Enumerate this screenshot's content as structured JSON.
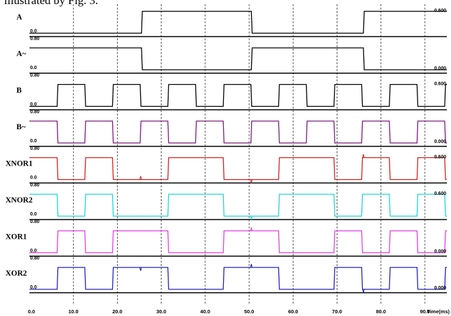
{
  "caption": "illustrated by Fig. 3.",
  "chart_data": {
    "type": "line",
    "title": "",
    "xlabel": "Time(ms)",
    "ylabel": "",
    "xlim": [
      0,
      95
    ],
    "x_ticks": [
      "0.0",
      "10.0",
      "20.0",
      "30.0",
      "40.0",
      "50.0",
      "60.0",
      "70.0",
      "80.0",
      "90.0"
    ],
    "grid": "vertical-dashed",
    "series": [
      {
        "name": "A",
        "color": "#000000",
        "low_label": "0.0",
        "high_label": "0.600",
        "top_label": "",
        "transitions": [
          25.5,
          50.5,
          76.0
        ],
        "initial": 0,
        "glitches": []
      },
      {
        "name": "A~",
        "color": "#000000",
        "low_label": "0.0",
        "high_label": "0.000",
        "top_label": "0.80",
        "transitions": [
          25.5,
          50.5,
          76.0
        ],
        "initial": 1,
        "glitches": []
      },
      {
        "name": "B",
        "color": "#000000",
        "low_label": "0.0",
        "high_label": "0.600",
        "top_label": "0.80",
        "transitions": [
          6.3,
          12.6,
          18.9,
          25.2,
          31.5,
          37.8,
          44.1,
          50.4,
          56.7,
          63.0,
          69.3,
          75.6,
          81.9,
          88.2,
          94.5
        ],
        "initial": 0,
        "glitches": []
      },
      {
        "name": "B~",
        "color": "#7a1a7a",
        "low_label": "0.0",
        "high_label": "0.000",
        "top_label": "0.80",
        "transitions": [
          6.3,
          12.6,
          18.9,
          25.2,
          31.5,
          37.8,
          44.1,
          50.4,
          56.7,
          63.0,
          69.3,
          75.6,
          81.9,
          88.2,
          94.5
        ],
        "initial": 1,
        "glitches": []
      },
      {
        "name": "XNOR1",
        "color": "#d42020",
        "low_label": "0.0",
        "high_label": "0.600",
        "top_label": "0.80",
        "transitions": [
          6.3,
          12.6,
          18.9,
          31.5,
          44.1,
          56.7,
          69.3,
          75.6,
          81.9,
          88.2,
          94.5
        ],
        "initial": 1,
        "glitches": [
          {
            "x": 25.3,
            "dir": "up"
          },
          {
            "x": 50.5,
            "dir": "down"
          },
          {
            "x": 76.0,
            "dir": "up"
          }
        ]
      },
      {
        "name": "XNOR2",
        "color": "#20d4d4",
        "low_label": "0.0",
        "high_label": "0.600",
        "top_label": "0.80",
        "transitions": [
          6.3,
          12.6,
          18.9,
          31.5,
          44.1,
          56.7,
          69.3,
          75.6,
          81.9,
          88.2,
          94.5
        ],
        "initial": 1,
        "glitches": [
          {
            "x": 50.5,
            "dir": "down"
          }
        ]
      },
      {
        "name": "XOR1",
        "color": "#e040e0",
        "low_label": "0.0",
        "high_label": "0.000",
        "top_label": "0.80",
        "transitions": [
          6.3,
          12.6,
          18.9,
          31.5,
          44.1,
          56.7,
          69.3,
          75.6,
          81.9,
          88.2,
          94.5
        ],
        "initial": 0,
        "glitches": [
          {
            "x": 50.5,
            "dir": "up"
          }
        ]
      },
      {
        "name": "XOR2",
        "color": "#2020c0",
        "low_label": "0.0",
        "high_label": "0.000",
        "top_label": "0.80",
        "transitions": [
          6.3,
          12.6,
          18.9,
          31.5,
          44.1,
          56.7,
          69.3,
          75.6,
          81.9,
          88.2,
          94.5
        ],
        "initial": 0,
        "glitches": [
          {
            "x": 25.3,
            "dir": "down"
          },
          {
            "x": 50.5,
            "dir": "up"
          },
          {
            "x": 76.0,
            "dir": "down"
          }
        ]
      }
    ]
  }
}
